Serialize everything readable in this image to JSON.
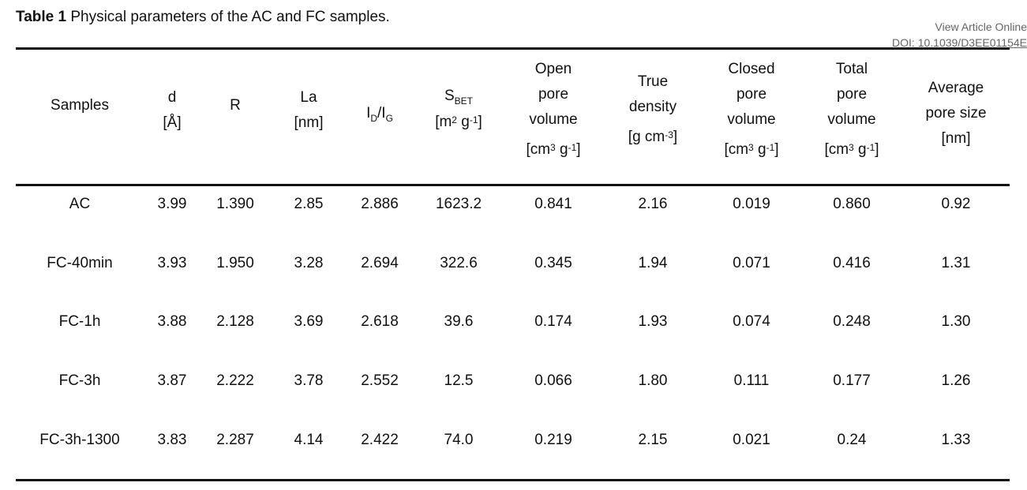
{
  "caption": {
    "label": "Table 1",
    "text": " Physical parameters of the AC and FC samples."
  },
  "article_link": {
    "view": "View Article Online",
    "doi": "DOI: 10.1039/D3EE01154E"
  },
  "headers": {
    "samples": "Samples",
    "d": {
      "name": "d",
      "unit": "[Å]"
    },
    "r": "R",
    "la": {
      "name": "La",
      "unit": "[nm]"
    },
    "id_ig": {
      "i1": "I",
      "s1": "D",
      "slash": "/",
      "i2": "I",
      "s2": "G"
    },
    "sbet": {
      "main": "S",
      "sub": "BET",
      "unit_open": "[m",
      "exp1": "2",
      "mid": " g",
      "exp2": "-1",
      "unit_close": "]"
    },
    "open_pore": {
      "l1": "Open",
      "l2": "pore",
      "l3": "volume",
      "unit_open": "[cm",
      "exp1": "3",
      "mid": " g",
      "exp2": "-1",
      "unit_close": "]"
    },
    "true_density": {
      "l1": "True",
      "l2": "density",
      "unit_open": "[g cm",
      "exp1": "-3",
      "unit_close": "]"
    },
    "closed_pore": {
      "l1": "Closed",
      "l2": "pore",
      "l3": "volume",
      "unit_open": "[cm",
      "exp1": "3",
      "mid": " g",
      "exp2": "-1",
      "unit_close": "]"
    },
    "total_pore": {
      "l1": "Total",
      "l2": "pore",
      "l3": "volume",
      "unit_open": "[cm",
      "exp1": "3",
      "mid": " g",
      "exp2": "-1",
      "unit_close": "]"
    },
    "avg_pore": {
      "l1": "Average",
      "l2": "pore size",
      "l3": "[nm]"
    }
  },
  "rows": [
    [
      "AC",
      "3.99",
      "1.390",
      "2.85",
      "2.886",
      "1623.2",
      "0.841",
      "2.16",
      "0.019",
      "0.860",
      "0.92"
    ],
    [
      "FC-40min",
      "3.93",
      "1.950",
      "3.28",
      "2.694",
      "322.6",
      "0.345",
      "1.94",
      "0.071",
      "0.416",
      "1.31"
    ],
    [
      "FC-1h",
      "3.88",
      "2.128",
      "3.69",
      "2.618",
      "39.6",
      "0.174",
      "1.93",
      "0.074",
      "0.248",
      "1.30"
    ],
    [
      "FC-3h",
      "3.87",
      "2.222",
      "3.78",
      "2.552",
      "12.5",
      "0.066",
      "1.80",
      "0.111",
      "0.177",
      "1.26"
    ],
    [
      "FC-3h-1300",
      "3.83",
      "2.287",
      "4.14",
      "2.422",
      "74.0",
      "0.219",
      "2.15",
      "0.021",
      "0.24",
      "1.33"
    ]
  ]
}
